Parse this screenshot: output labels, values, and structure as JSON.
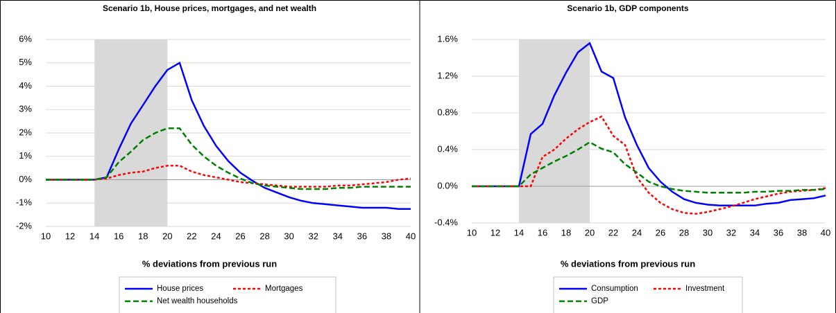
{
  "chart_data": [
    {
      "type": "line",
      "title": "Scenario 1b, House prices, mortgages, and net wealth",
      "x_label": "% deviations from previous run",
      "x": [
        10,
        11,
        12,
        13,
        14,
        15,
        16,
        17,
        18,
        19,
        20,
        21,
        22,
        23,
        24,
        25,
        26,
        27,
        28,
        29,
        30,
        31,
        32,
        33,
        34,
        35,
        36,
        37,
        38,
        39,
        40
      ],
      "xlim": [
        10,
        40
      ],
      "xticks": [
        10,
        12,
        14,
        16,
        18,
        20,
        22,
        24,
        26,
        28,
        30,
        32,
        34,
        36,
        38,
        40
      ],
      "ylim": [
        -2,
        6
      ],
      "yticks": [
        {
          "value": -2,
          "label": "-2%"
        },
        {
          "value": -1,
          "label": "-1%"
        },
        {
          "value": 0,
          "label": "0%"
        },
        {
          "value": 1,
          "label": "1%"
        },
        {
          "value": 2,
          "label": "2%"
        },
        {
          "value": 3,
          "label": "3%"
        },
        {
          "value": 4,
          "label": "4%"
        },
        {
          "value": 5,
          "label": "5%"
        },
        {
          "value": 6,
          "label": "6%"
        }
      ],
      "grid": true,
      "shade": [
        14,
        20
      ],
      "shade_color": "#d9d9d9",
      "series": [
        {
          "name": "House prices",
          "color": "#0000ff",
          "style": "solid",
          "values": [
            0,
            0,
            0,
            0,
            0,
            0.1,
            1.3,
            2.4,
            3.2,
            4.0,
            4.7,
            5.0,
            3.4,
            2.3,
            1.45,
            0.8,
            0.3,
            -0.05,
            -0.35,
            -0.55,
            -0.75,
            -0.9,
            -1.0,
            -1.05,
            -1.1,
            -1.15,
            -1.2,
            -1.2,
            -1.2,
            -1.25,
            -1.25
          ]
        },
        {
          "name": "Mortgages",
          "color": "#ff0000",
          "style": "dotted",
          "values": [
            0,
            0,
            0,
            0,
            0,
            0.05,
            0.2,
            0.3,
            0.35,
            0.5,
            0.6,
            0.6,
            0.35,
            0.2,
            0.1,
            0.0,
            -0.1,
            -0.15,
            -0.2,
            -0.25,
            -0.3,
            -0.3,
            -0.3,
            -0.3,
            -0.25,
            -0.25,
            -0.2,
            -0.15,
            -0.1,
            0.0,
            0.05
          ]
        },
        {
          "name": "Net wealth households",
          "color": "#008000",
          "style": "dashed",
          "values": [
            0,
            0,
            0,
            0,
            0,
            0.1,
            0.75,
            1.2,
            1.7,
            2.0,
            2.2,
            2.2,
            1.5,
            1.0,
            0.6,
            0.3,
            0.05,
            -0.15,
            -0.25,
            -0.3,
            -0.35,
            -0.4,
            -0.4,
            -0.4,
            -0.35,
            -0.35,
            -0.3,
            -0.3,
            -0.3,
            -0.3,
            -0.3
          ]
        }
      ]
    },
    {
      "type": "line",
      "title": "Scenario 1b, GDP components",
      "x_label": "% deviations from previous run",
      "x": [
        10,
        11,
        12,
        13,
        14,
        15,
        16,
        17,
        18,
        19,
        20,
        21,
        22,
        23,
        24,
        25,
        26,
        27,
        28,
        29,
        30,
        31,
        32,
        33,
        34,
        35,
        36,
        37,
        38,
        39,
        40
      ],
      "xlim": [
        10,
        40
      ],
      "xticks": [
        10,
        12,
        14,
        16,
        18,
        20,
        22,
        24,
        26,
        28,
        30,
        32,
        34,
        36,
        38,
        40
      ],
      "ylim": [
        -0.4,
        1.6
      ],
      "yticks": [
        {
          "value": -0.4,
          "label": "-0.4%"
        },
        {
          "value": 0,
          "label": "0.0%"
        },
        {
          "value": 0.4,
          "label": "0.4%"
        },
        {
          "value": 0.8,
          "label": "0.8%"
        },
        {
          "value": 1.2,
          "label": "1.2%"
        },
        {
          "value": 1.6,
          "label": "1.6%"
        }
      ],
      "grid": true,
      "shade": [
        14,
        20
      ],
      "shade_color": "#d9d9d9",
      "series": [
        {
          "name": "Consumption",
          "color": "#0000ff",
          "style": "solid",
          "values": [
            0,
            0,
            0,
            0,
            0,
            0.57,
            0.68,
            0.99,
            1.24,
            1.46,
            1.56,
            1.25,
            1.18,
            0.75,
            0.45,
            0.2,
            0.05,
            -0.06,
            -0.14,
            -0.18,
            -0.2,
            -0.21,
            -0.21,
            -0.21,
            -0.21,
            -0.19,
            -0.18,
            -0.15,
            -0.14,
            -0.13,
            -0.1
          ]
        },
        {
          "name": "Investment",
          "color": "#ff0000",
          "style": "dotted",
          "values": [
            0,
            0,
            0,
            0,
            0,
            0,
            0.32,
            0.4,
            0.52,
            0.62,
            0.7,
            0.76,
            0.55,
            0.45,
            0.1,
            -0.07,
            -0.18,
            -0.25,
            -0.29,
            -0.3,
            -0.28,
            -0.25,
            -0.22,
            -0.18,
            -0.14,
            -0.11,
            -0.08,
            -0.06,
            -0.05,
            -0.04,
            -0.02
          ]
        },
        {
          "name": "GDP",
          "color": "#008000",
          "style": "dashed",
          "values": [
            0,
            0,
            0,
            0,
            0,
            0.13,
            0.2,
            0.27,
            0.33,
            0.4,
            0.48,
            0.41,
            0.37,
            0.24,
            0.15,
            0.05,
            0.0,
            -0.03,
            -0.05,
            -0.06,
            -0.07,
            -0.07,
            -0.07,
            -0.07,
            -0.06,
            -0.06,
            -0.05,
            -0.05,
            -0.04,
            -0.04,
            -0.03
          ]
        }
      ]
    }
  ]
}
